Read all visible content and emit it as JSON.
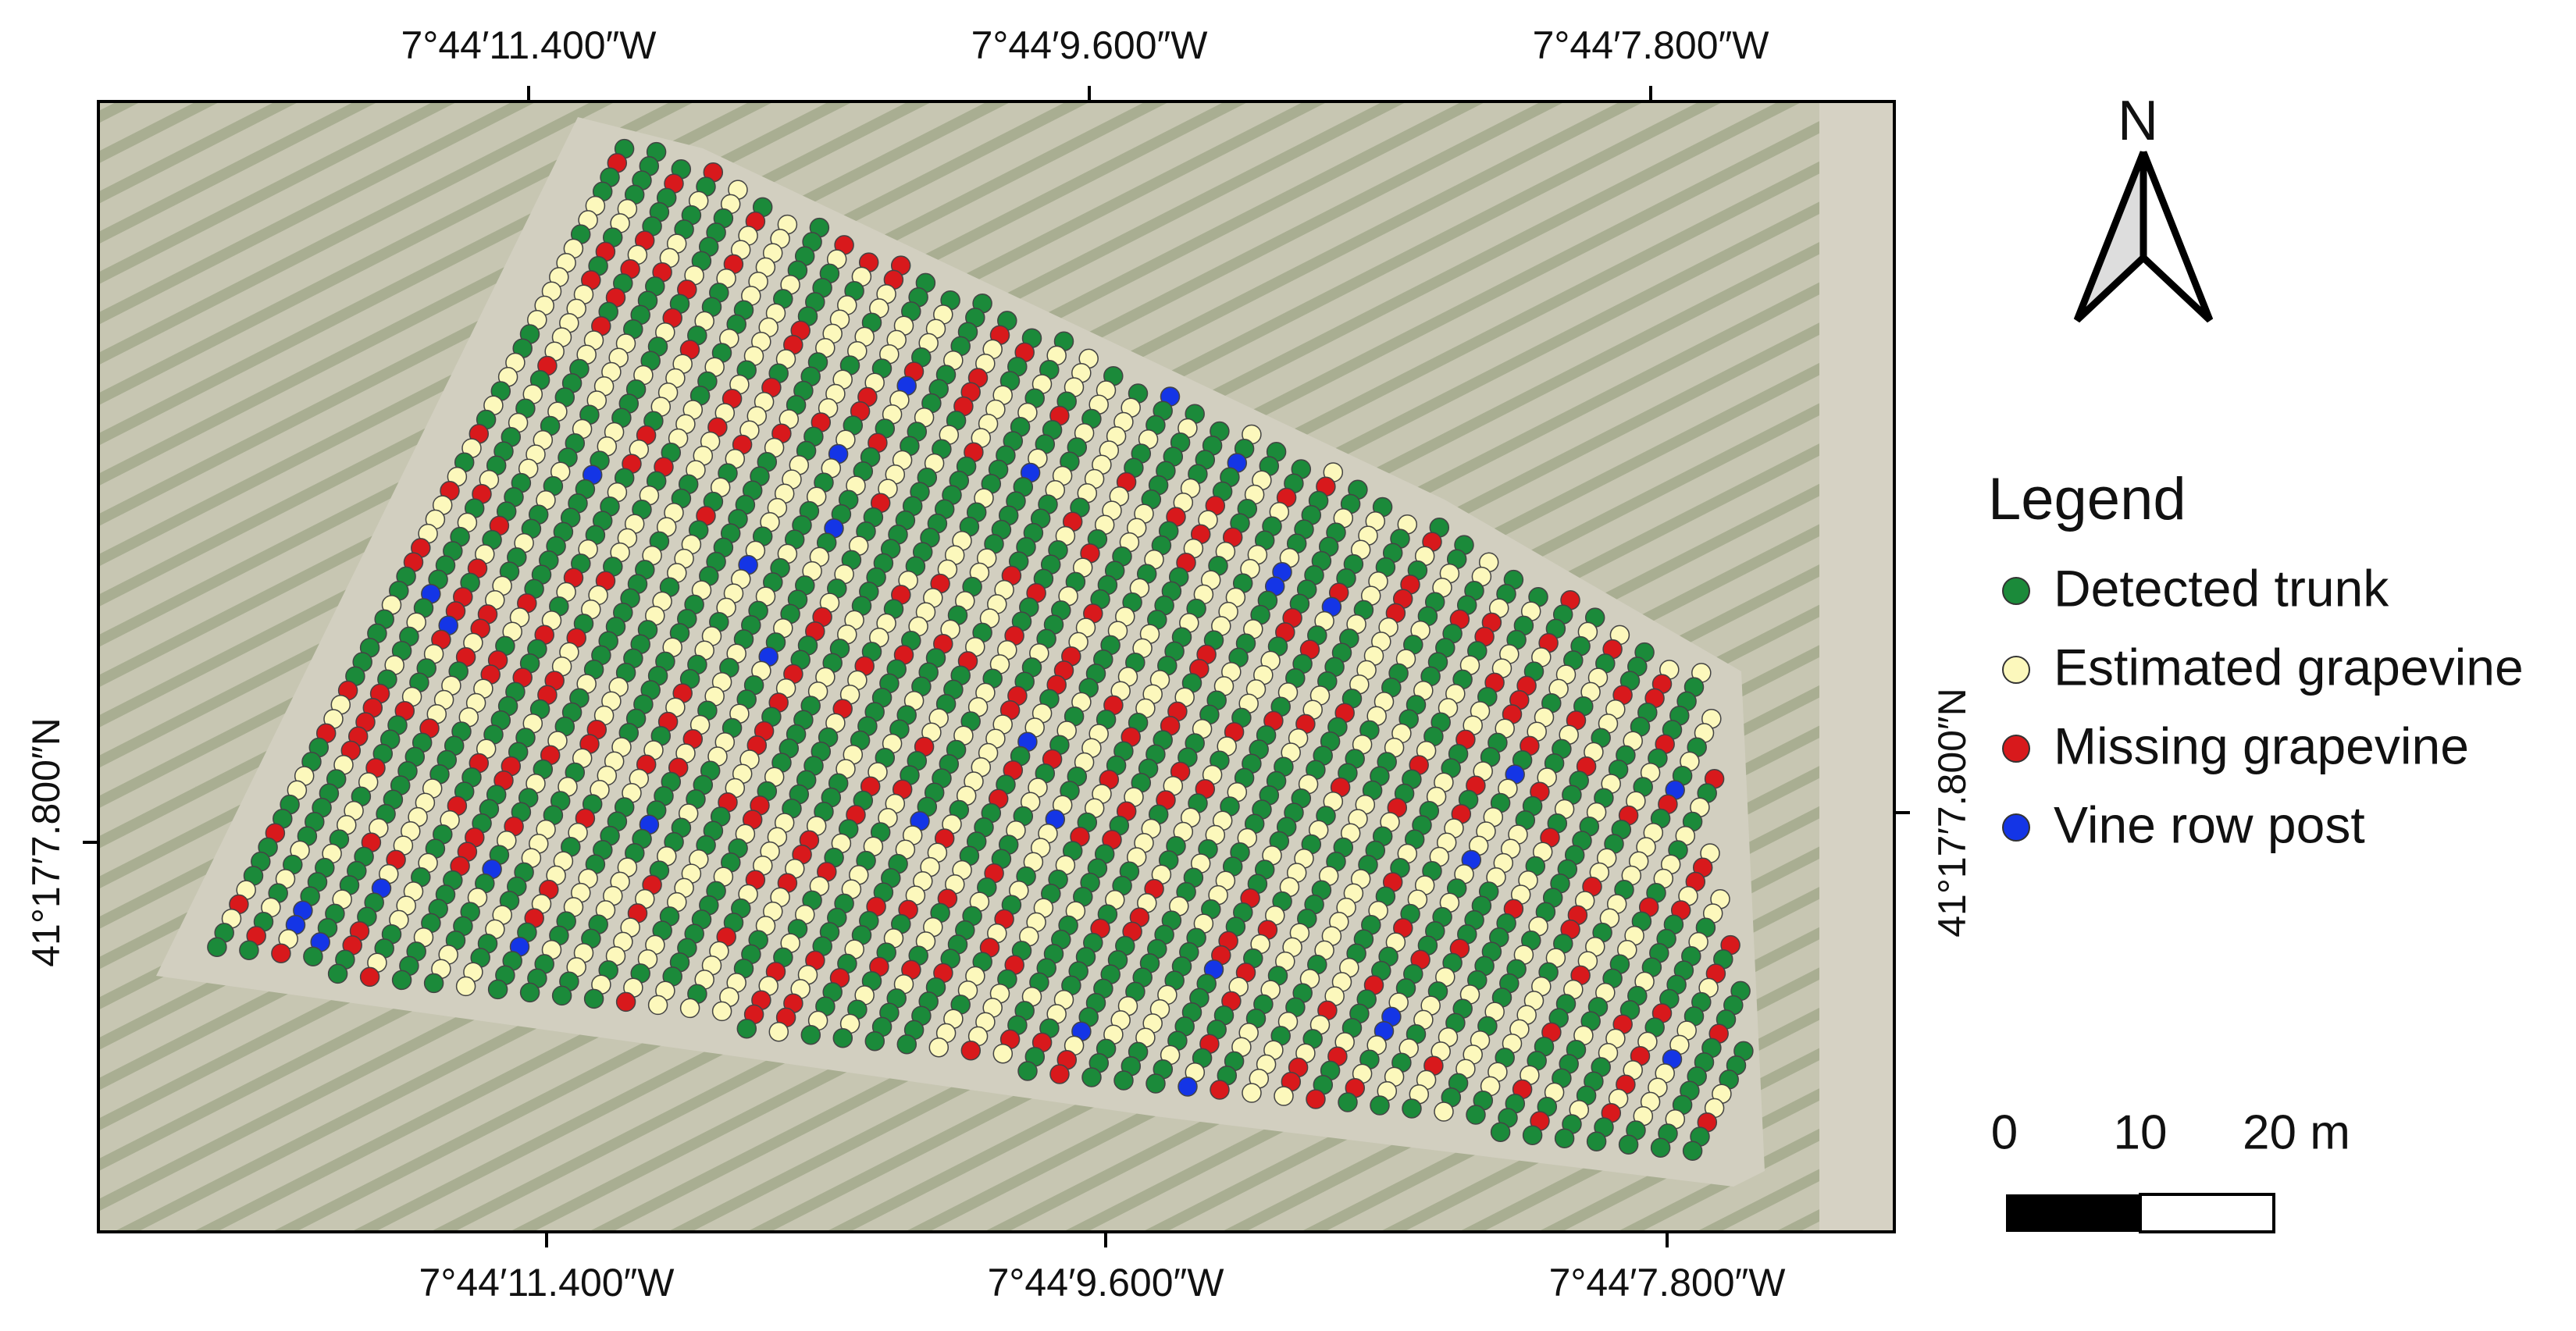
{
  "map": {
    "top_labels": [
      "7°44′11.400″W",
      "7°44′9.600″W",
      "7°44′7.800″W"
    ],
    "bottom_labels": [
      "7°44′11.400″W",
      "7°44′9.600″W",
      "7°44′7.800″W"
    ],
    "left_label": "41°17′7.800″N",
    "right_label": "41°17′7.800″N",
    "north": "N",
    "legend": {
      "title": "Legend",
      "items": [
        {
          "label": "Detected trunk",
          "color": "#1b8a3a"
        },
        {
          "label": "Estimated grapevine",
          "color": "#fcf8bc"
        },
        {
          "label": "Missing grapevine",
          "color": "#d8191c"
        },
        {
          "label": "Vine row post",
          "color": "#1435e6"
        }
      ]
    },
    "scale_bar": {
      "labels": [
        "0",
        "10",
        "20 m"
      ]
    }
  }
}
